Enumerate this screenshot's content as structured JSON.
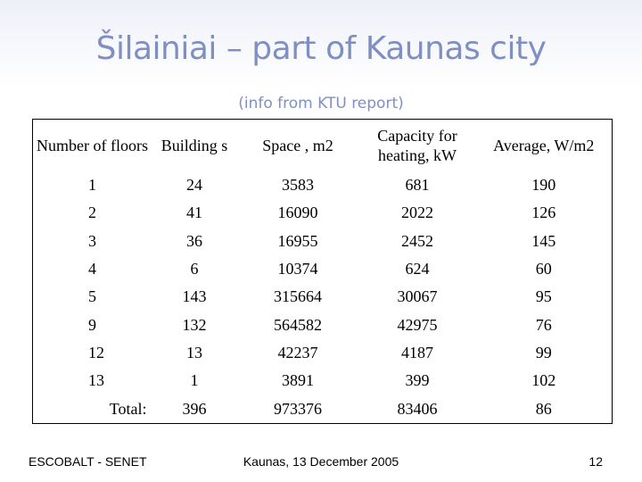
{
  "slide": {
    "title": "Šilainiai – part of Kaunas city",
    "subtitle": "(info from KTU report)"
  },
  "table": {
    "headers": [
      "Number of floors",
      "Building s",
      "Space , m2",
      "Capacity for heating, kW",
      "Average, W/m2"
    ],
    "rows": [
      [
        "1",
        "24",
        "3583",
        "681",
        "190"
      ],
      [
        "2",
        "41",
        "16090",
        "2022",
        "126"
      ],
      [
        "3",
        "36",
        "16955",
        "2452",
        "145"
      ],
      [
        "4",
        "6",
        "10374",
        "624",
        "60"
      ],
      [
        "5",
        "143",
        "315664",
        "30067",
        "95"
      ],
      [
        "9",
        "132",
        "564582",
        "42975",
        "76"
      ],
      [
        "12",
        "13",
        "42237",
        "4187",
        "99"
      ],
      [
        "13",
        "1",
        "3891",
        "399",
        "102"
      ]
    ],
    "total": [
      "Total:",
      "396",
      "973376",
      "83406",
      "86"
    ]
  },
  "footer": {
    "left": "ESCOBALT - SENET",
    "center": "Kaunas, 13 December 2005",
    "page_number": "12"
  }
}
